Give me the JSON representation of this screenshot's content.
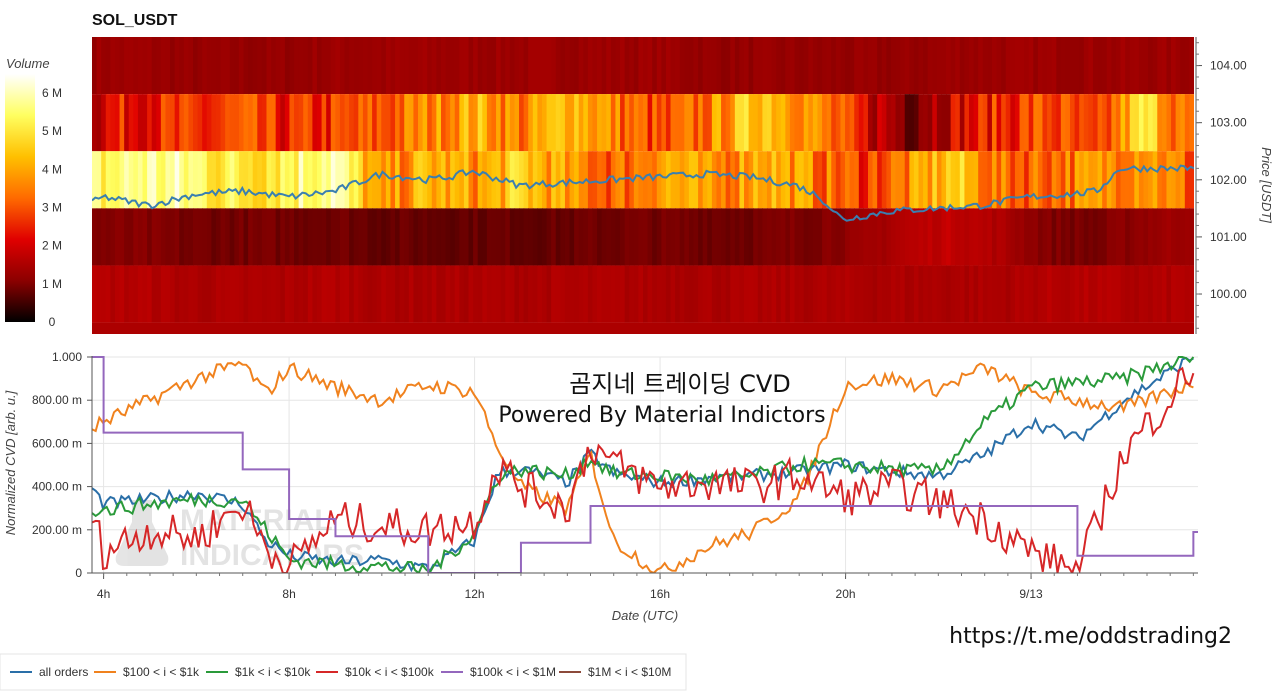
{
  "title": "SOL_USDT",
  "watermark": {
    "line1": "곰지네 트레이딩 CVD",
    "line2": "Powered By Material Indictors",
    "url": "https://t.me/oddstrading2",
    "logo_text_1": "MATERIAL",
    "logo_text_2": "INDICATORS"
  },
  "colorbar": {
    "label": "Volume",
    "ticks": [
      "0",
      "1 M",
      "2 M",
      "3 M",
      "4 M",
      "5 M",
      "6 M"
    ],
    "colors": [
      "#000000",
      "#8b0000",
      "#e00000",
      "#ff6a00",
      "#ffc000",
      "#ffff60",
      "#ffffff"
    ]
  },
  "chart_data": [
    {
      "type": "heatmap",
      "title": "SOL_USDT",
      "ylabel": "Price [USDT]",
      "yticks": [
        "100.00",
        "101.00",
        "102.00",
        "103.00",
        "104.00"
      ],
      "ylim": [
        99.3,
        104.5
      ],
      "price_bands": [
        "99.5-100.5",
        "100.5-101.5",
        "101.5-102.5",
        "102.5-103.5",
        "103.5-104.5"
      ],
      "volume_scale": [
        0,
        6.5
      ],
      "volume_profile_millions": {
        "104": [
          1.3,
          1.3,
          1.2,
          1.2,
          1.2,
          1.3,
          1.3,
          1.3,
          1.3,
          1.3,
          1.3,
          1.3,
          1.3,
          1.2,
          1.2,
          1.2,
          1.2,
          1.2,
          1.3,
          1.3,
          1.3,
          1.3,
          1.3,
          1.3
        ],
        "103": [
          2.0,
          2.6,
          2.4,
          2.8,
          2.4,
          2.6,
          3.0,
          3.6,
          4.2,
          3.4,
          4.6,
          3.4,
          2.6,
          3.6,
          4.8,
          3.8,
          2.2,
          1.2,
          2.0,
          2.6,
          3.0,
          2.2,
          5.0,
          2.8
        ],
        "102": [
          5.2,
          5.8,
          5.6,
          5.0,
          5.4,
          6.1,
          3.4,
          4.2,
          3.8,
          4.6,
          3.6,
          3.2,
          4.2,
          3.4,
          4.4,
          3.6,
          2.8,
          3.4,
          4.6,
          3.2,
          3.4,
          3.6,
          4.2,
          3.0
        ],
        "101": [
          1.0,
          1.0,
          0.9,
          0.9,
          0.9,
          0.9,
          0.8,
          0.8,
          0.8,
          0.8,
          0.8,
          0.9,
          0.9,
          0.9,
          0.9,
          1.0,
          1.2,
          1.6,
          1.8,
          1.5,
          1.0,
          0.9,
          1.2,
          1.4
        ],
        "100": [
          1.6,
          1.6,
          1.5,
          1.5,
          1.5,
          1.6,
          1.5,
          1.5,
          1.5,
          1.5,
          1.5,
          1.5,
          1.5,
          1.5,
          1.5,
          1.5,
          1.5,
          1.5,
          1.5,
          1.5,
          1.6,
          1.6,
          1.5,
          1.6
        ]
      },
      "price_series": {
        "name": "price",
        "color": "#3a7fb0",
        "x": [
          "3:45",
          "4:00",
          "5:00",
          "6:00",
          "7:00",
          "8:00",
          "9:00",
          "10:00",
          "11:00",
          "11:30",
          "12:00",
          "13:00",
          "14:00",
          "15:00",
          "16:00",
          "17:00",
          "18:00",
          "19:00",
          "19:30",
          "20:00",
          "21:00",
          "22:00",
          "23:00",
          "0:00",
          "1:00",
          "1:30",
          "2:00",
          "3:30"
        ],
        "y": [
          101.6,
          101.7,
          101.55,
          101.75,
          101.8,
          101.7,
          101.8,
          102.1,
          102.0,
          102.05,
          102.15,
          101.9,
          101.95,
          102.0,
          102.05,
          102.1,
          102.05,
          101.9,
          101.7,
          101.3,
          101.45,
          101.5,
          101.55,
          101.7,
          101.75,
          101.8,
          102.2,
          101.85
        ]
      }
    },
    {
      "type": "line",
      "xlabel": "Date (UTC)",
      "ylabel": "Normalized CVD [arb. u.]",
      "xticks": [
        "4h",
        "8h",
        "12h",
        "16h",
        "20h",
        "9/13"
      ],
      "yticks": [
        "0",
        "200.00 m",
        "400.00 m",
        "600.00 m",
        "800.00 m",
        "1.000"
      ],
      "ylim": [
        0,
        1.0
      ],
      "x_hours": [
        3.75,
        4,
        5,
        6,
        7,
        7.5,
        8,
        9,
        10,
        11,
        12,
        12.5,
        13,
        14,
        14.5,
        15,
        16,
        17,
        18,
        19,
        20,
        21,
        22,
        23,
        24,
        25,
        26,
        27.5
      ],
      "series": [
        {
          "name": "all orders",
          "color": "#2a6fa8",
          "values": [
            0.39,
            0.32,
            0.34,
            0.37,
            0.32,
            0.15,
            0.08,
            0.05,
            0.06,
            0.02,
            0.15,
            0.46,
            0.48,
            0.42,
            0.55,
            0.46,
            0.42,
            0.44,
            0.45,
            0.47,
            0.5,
            0.47,
            0.45,
            0.55,
            0.7,
            0.62,
            0.8,
            1.0
          ]
        },
        {
          "name": "$100 < i < $1k",
          "color": "#f0821e",
          "values": [
            0.67,
            0.7,
            0.8,
            0.9,
            0.97,
            0.83,
            0.95,
            0.86,
            0.8,
            0.87,
            0.84,
            0.58,
            0.4,
            0.3,
            0.55,
            0.15,
            0.0,
            0.12,
            0.19,
            0.35,
            0.87,
            0.9,
            0.85,
            0.95,
            0.83,
            0.8,
            0.76,
            0.88
          ]
        },
        {
          "name": "$1k < i < $10k",
          "color": "#2a9a3a",
          "values": [
            0.3,
            0.29,
            0.32,
            0.34,
            0.34,
            0.2,
            0.06,
            0.04,
            0.03,
            0.01,
            0.18,
            0.45,
            0.48,
            0.45,
            0.53,
            0.46,
            0.45,
            0.43,
            0.45,
            0.5,
            0.5,
            0.48,
            0.47,
            0.7,
            0.86,
            0.88,
            0.9,
            1.0
          ]
        },
        {
          "name": "$10k < i < $100k",
          "color": "#d62728",
          "values": [
            0.27,
            0.1,
            0.2,
            0.16,
            0.32,
            0.12,
            0.03,
            0.25,
            0.22,
            0.2,
            0.24,
            0.5,
            0.4,
            0.3,
            0.6,
            0.5,
            0.4,
            0.42,
            0.4,
            0.45,
            0.35,
            0.4,
            0.33,
            0.25,
            0.1,
            0.0,
            0.55,
            0.95
          ]
        },
        {
          "name": "$100k < i < $1M",
          "color": "#9467bd",
          "values": [
            1.0,
            0.65,
            0.65,
            0.65,
            0.48,
            0.48,
            0.25,
            0.17,
            0.17,
            0.0,
            0.0,
            0.0,
            0.14,
            0.14,
            0.31,
            0.31,
            0.31,
            0.31,
            0.31,
            0.31,
            0.31,
            0.31,
            0.31,
            0.31,
            0.31,
            0.08,
            0.08,
            0.19
          ]
        },
        {
          "name": "$1M < i < $10M",
          "color": "#8c4a3a",
          "values": []
        }
      ]
    }
  ]
}
